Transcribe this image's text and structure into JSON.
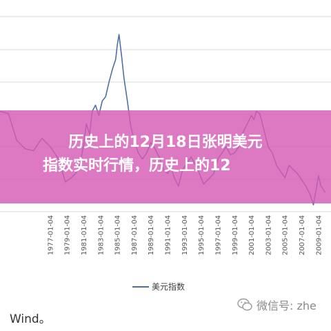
{
  "banner": {
    "line1": "历史上的12月18日张明美元",
    "line2": "指数实时行情，历史上的12"
  },
  "source_text": "Wind。",
  "watermark": {
    "label": "微信号: zhe"
  },
  "chart_data": {
    "type": "line",
    "categories": [
      "1977-01-04",
      "1979-01-04",
      "1981-01-04",
      "1983-01-04",
      "1985-01-04",
      "1987-01-04",
      "1989-01-04",
      "1991-01-04",
      "1993-01-04",
      "1995-01-04",
      "1997-01-04",
      "1999-01-04",
      "2001-01-04",
      "2003-01-04",
      "2005-01-04",
      "2007-01-04",
      "2009-01-04"
    ],
    "series": [
      {
        "name": "美元指数",
        "color": "#4f6fa3",
        "x": [
          1971.0,
          1972.0,
          1973.0,
          1974.0,
          1975.0,
          1976.0,
          1977.0,
          1978.0,
          1978.8,
          1979.5,
          1980.0,
          1980.5,
          1981.0,
          1981.3,
          1981.7,
          1982.0,
          1982.4,
          1982.8,
          1983.2,
          1983.6,
          1984.0,
          1984.4,
          1984.8,
          1985.0,
          1985.2,
          1985.5,
          1985.8,
          1986.2,
          1986.6,
          1987.0,
          1987.5,
          1988.0,
          1988.5,
          1989.0,
          1989.5,
          1990.0,
          1990.5,
          1991.0,
          1991.4,
          1991.8,
          1992.3,
          1992.8,
          1993.3,
          1993.8,
          1994.5,
          1995.0,
          1995.3,
          1995.8,
          1996.5,
          1997.0,
          1997.5,
          1998.0,
          1998.5,
          1999.0,
          1999.5,
          2000.0,
          2000.5,
          2001.0,
          2001.3,
          2001.6,
          2002.0,
          2002.5,
          2003.0,
          2003.5,
          2004.0,
          2004.5,
          2005.0,
          2005.5,
          2006.0,
          2006.5,
          2007.0,
          2007.5,
          2008.0,
          2008.4,
          2008.8,
          2009.0,
          2009.3,
          2009.8
        ],
        "values": [
          118,
          117,
          104,
          100,
          99,
          105,
          101,
          95,
          84,
          86,
          88,
          92,
          102,
          112,
          107,
          118,
          121,
          116,
          123,
          125,
          132,
          138,
          143,
          150,
          155,
          145,
          134,
          123,
          111,
          104,
          98,
          95,
          98,
          103,
          100,
          96,
          90,
          88,
          91,
          86,
          82,
          90,
          93,
          96,
          91,
          86,
          83,
          85,
          88,
          95,
          98,
          101,
          97,
          98,
          101,
          108,
          112,
          116,
          114,
          118,
          117,
          109,
          101,
          98,
          92,
          89,
          86,
          92,
          90,
          88,
          85,
          82,
          78,
          73,
          82,
          87,
          82,
          79
        ]
      }
    ],
    "ylim": [
      70,
      165
    ],
    "xlim": [
      1971,
      2010.5
    ],
    "gridlines": true,
    "legend": "bottom"
  }
}
